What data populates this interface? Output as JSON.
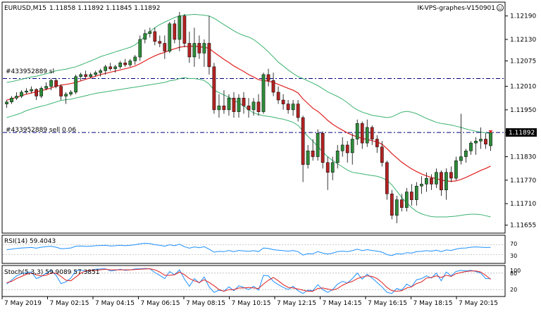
{
  "header": {
    "symbol": "EURUSD,M15",
    "ohlc": "1.11858 1.11892 1.11845 1.11892",
    "server": "IK-VPS-graphes-V150901"
  },
  "orders": {
    "sl_label": "#433952889 sl",
    "sell_label": "#433952889 sell 0.06"
  },
  "price_axis": {
    "ticks": [
      "1.12190",
      "1.12130",
      "1.12075",
      "1.12010",
      "1.11950",
      "1.11892",
      "1.11830",
      "1.11770",
      "1.11710",
      "1.11655"
    ],
    "current": "1.11892"
  },
  "time_axis": [
    "7 May 2019",
    "7 May 02:15",
    "7 May 04:15",
    "7 May 06:15",
    "7 May 08:15",
    "7 May 10:15",
    "7 May 12:15",
    "7 May 14:15",
    "7 May 16:15",
    "7 May 18:15",
    "7 May 20:15"
  ],
  "rsi": {
    "label": "RSI(14) 59.4043",
    "ticks": [
      "70",
      "30"
    ]
  },
  "stoch": {
    "label": "Stoch(5,3,3) 59.9089 57.3851",
    "ticks": [
      "100",
      "80",
      "20"
    ]
  },
  "colors": {
    "bull": "#2e8b3a",
    "bear": "#b22222",
    "band": "#3cb371",
    "ma": "#e02020",
    "rsi": "#1e90ff",
    "stoch_main": "#1e90ff",
    "stoch_signal": "#e02020",
    "level": "#000080"
  },
  "chart_data": {
    "type": "candlestick",
    "title": "EURUSD,M15",
    "ylim": [
      1.1164,
      1.1222
    ],
    "sl_level": 1.1203,
    "sell_level": 1.11892,
    "candles": [
      [
        1.11965,
        1.11975,
        1.11955,
        1.1197
      ],
      [
        1.1197,
        1.11985,
        1.11965,
        1.1198
      ],
      [
        1.1198,
        1.11995,
        1.11975,
        1.11985
      ],
      [
        1.11985,
        1.12,
        1.1198,
        1.11995
      ],
      [
        1.11995,
        1.12005,
        1.1199,
        1.11998
      ],
      [
        1.11998,
        1.1201,
        1.11992,
        1.12002
      ],
      [
        1.12002,
        1.12005,
        1.11975,
        1.11985
      ],
      [
        1.11985,
        1.1201,
        1.1198,
        1.12005
      ],
      [
        1.12005,
        1.1202,
        1.12,
        1.1201
      ],
      [
        1.1201,
        1.1203,
        1.12,
        1.12025
      ],
      [
        1.12025,
        1.1203,
        1.12005,
        1.1201
      ],
      [
        1.1201,
        1.12015,
        1.11975,
        1.11985
      ],
      [
        1.11985,
        1.11995,
        1.11965,
        1.1199
      ],
      [
        1.1199,
        1.12,
        1.11985,
        1.11995
      ],
      [
        1.11995,
        1.1204,
        1.1199,
        1.12035
      ],
      [
        1.12035,
        1.12045,
        1.12025,
        1.1204
      ],
      [
        1.1204,
        1.1205,
        1.1203,
        1.12035
      ],
      [
        1.12035,
        1.12045,
        1.1203,
        1.1204
      ],
      [
        1.1204,
        1.1205,
        1.12035,
        1.12045
      ],
      [
        1.12045,
        1.12055,
        1.12035,
        1.1205
      ],
      [
        1.1205,
        1.12065,
        1.1204,
        1.1206
      ],
      [
        1.1206,
        1.1207,
        1.1205,
        1.12055
      ],
      [
        1.12055,
        1.12065,
        1.12045,
        1.1206
      ],
      [
        1.1206,
        1.12075,
        1.12055,
        1.1207
      ],
      [
        1.1207,
        1.1208,
        1.1206,
        1.12065
      ],
      [
        1.12065,
        1.1208,
        1.1206,
        1.12075
      ],
      [
        1.12075,
        1.1209,
        1.12065,
        1.12085
      ],
      [
        1.12085,
        1.1214,
        1.12075,
        1.1213
      ],
      [
        1.1213,
        1.12155,
        1.1212,
        1.12145
      ],
      [
        1.12145,
        1.1216,
        1.12135,
        1.1215
      ],
      [
        1.1215,
        1.1216,
        1.12115,
        1.12125
      ],
      [
        1.12125,
        1.1214,
        1.1211,
        1.1212
      ],
      [
        1.1212,
        1.1214,
        1.1208,
        1.121
      ],
      [
        1.121,
        1.12175,
        1.12095,
        1.1217
      ],
      [
        1.1217,
        1.1218,
        1.1212,
        1.1213
      ],
      [
        1.1213,
        1.122,
        1.121,
        1.1219
      ],
      [
        1.1219,
        1.12195,
        1.1211,
        1.1212
      ],
      [
        1.1212,
        1.1215,
        1.1207,
        1.12085
      ],
      [
        1.12085,
        1.1216,
        1.1206,
        1.1212
      ],
      [
        1.1212,
        1.1214,
        1.1208,
        1.12095
      ],
      [
        1.12095,
        1.1213,
        1.1206,
        1.1212
      ],
      [
        1.1212,
        1.1219,
        1.1204,
        1.1206
      ],
      [
        1.1206,
        1.1207,
        1.1194,
        1.1195
      ],
      [
        1.1195,
        1.1199,
        1.1193,
        1.1196
      ],
      [
        1.1196,
        1.12,
        1.1194,
        1.1195
      ],
      [
        1.1195,
        1.1199,
        1.11935,
        1.1198
      ],
      [
        1.1198,
        1.11995,
        1.1193,
        1.11945
      ],
      [
        1.11945,
        1.1199,
        1.1193,
        1.1198
      ],
      [
        1.1198,
        1.11995,
        1.1194,
        1.1196
      ],
      [
        1.1196,
        1.1198,
        1.1193,
        1.1195
      ],
      [
        1.1195,
        1.1198,
        1.11935,
        1.1197
      ],
      [
        1.1197,
        1.1199,
        1.11935,
        1.11945
      ],
      [
        1.11945,
        1.12045,
        1.1194,
        1.1204
      ],
      [
        1.1204,
        1.12055,
        1.1201,
        1.12025
      ],
      [
        1.12025,
        1.12045,
        1.11985,
        1.11995
      ],
      [
        1.11995,
        1.1201,
        1.11965,
        1.11975
      ],
      [
        1.11975,
        1.1199,
        1.1195,
        1.11965
      ],
      [
        1.11965,
        1.11975,
        1.1194,
        1.1195
      ],
      [
        1.1195,
        1.11975,
        1.11935,
        1.11965
      ],
      [
        1.11965,
        1.11975,
        1.1192,
        1.1193
      ],
      [
        1.1193,
        1.11935,
        1.11765,
        1.1181
      ],
      [
        1.1181,
        1.1186,
        1.118,
        1.11845
      ],
      [
        1.11845,
        1.11875,
        1.1182,
        1.1183
      ],
      [
        1.1183,
        1.119,
        1.1182,
        1.1189
      ],
      [
        1.1189,
        1.11895,
        1.118,
        1.11815
      ],
      [
        1.11815,
        1.1183,
        1.11745,
        1.1179
      ],
      [
        1.1179,
        1.1183,
        1.1177,
        1.11815
      ],
      [
        1.11815,
        1.1186,
        1.118,
        1.11845
      ],
      [
        1.11845,
        1.1188,
        1.1183,
        1.1186
      ],
      [
        1.1186,
        1.1187,
        1.11815,
        1.1184
      ],
      [
        1.1184,
        1.1189,
        1.1181,
        1.11875
      ],
      [
        1.11875,
        1.11925,
        1.1186,
        1.11915
      ],
      [
        1.11915,
        1.1192,
        1.1185,
        1.11865
      ],
      [
        1.11865,
        1.11925,
        1.11855,
        1.11905
      ],
      [
        1.11905,
        1.1191,
        1.1186,
        1.11875
      ],
      [
        1.11875,
        1.11885,
        1.1184,
        1.11855
      ],
      [
        1.11855,
        1.1187,
        1.11805,
        1.11815
      ],
      [
        1.11815,
        1.1182,
        1.1172,
        1.11735
      ],
      [
        1.11735,
        1.11745,
        1.1167,
        1.1168
      ],
      [
        1.1168,
        1.1173,
        1.1166,
        1.1172
      ],
      [
        1.1172,
        1.11735,
        1.1169,
        1.117
      ],
      [
        1.117,
        1.1175,
        1.1169,
        1.1174
      ],
      [
        1.1174,
        1.1176,
        1.11705,
        1.1172
      ],
      [
        1.1172,
        1.11765,
        1.11705,
        1.11755
      ],
      [
        1.11755,
        1.1178,
        1.11735,
        1.1176
      ],
      [
        1.1176,
        1.1179,
        1.1174,
        1.11775
      ],
      [
        1.11775,
        1.11785,
        1.11745,
        1.1176
      ],
      [
        1.1176,
        1.118,
        1.1175,
        1.1179
      ],
      [
        1.1179,
        1.11795,
        1.1173,
        1.11745
      ],
      [
        1.11745,
        1.118,
        1.1172,
        1.1179
      ],
      [
        1.1179,
        1.11805,
        1.11765,
        1.11775
      ],
      [
        1.11775,
        1.1183,
        1.1177,
        1.1182
      ],
      [
        1.1182,
        1.1194,
        1.1181,
        1.1183
      ],
      [
        1.1183,
        1.1185,
        1.11815,
        1.11845
      ],
      [
        1.11845,
        1.1187,
        1.11835,
        1.11865
      ],
      [
        1.11865,
        1.1188,
        1.11835,
        1.1187
      ],
      [
        1.1187,
        1.11905,
        1.1185,
        1.11875
      ],
      [
        1.11875,
        1.1189,
        1.1185,
        1.11862
      ],
      [
        1.11858,
        1.11892,
        1.11845,
        1.11892
      ]
    ],
    "ma": [
      1.11975,
      1.11978,
      1.11982,
      1.11986,
      1.1199,
      1.11993,
      1.11996,
      1.11999,
      1.12002,
      1.12006,
      1.1201,
      1.12013,
      1.12015,
      1.12017,
      1.1202,
      1.12024,
      1.12028,
      1.12032,
      1.12036,
      1.1204,
      1.12043,
      1.12046,
      1.12049,
      1.12052,
      1.12055,
      1.12058,
      1.12062,
      1.12068,
      1.12075,
      1.12082,
      1.12088,
      1.12093,
      1.12097,
      1.12102,
      1.12106,
      1.1211,
      1.12112,
      1.12112,
      1.12113,
      1.12111,
      1.1211,
      1.12107,
      1.12097,
      1.12088,
      1.12079,
      1.12071,
      1.12062,
      1.12055,
      1.12048,
      1.1204,
      1.12034,
      1.12027,
      1.12025,
      1.12023,
      1.1202,
      1.12015,
      1.1201,
      1.12005,
      1.12,
      1.11993,
      1.11978,
      1.11966,
      1.11954,
      1.11946,
      1.11935,
      1.11923,
      1.11913,
      1.11905,
      1.11898,
      1.11891,
      1.11885,
      1.11881,
      1.11877,
      1.11874,
      1.11871,
      1.11868,
      1.11862,
      1.11851,
      1.11838,
      1.11827,
      1.11816,
      1.11807,
      1.11799,
      1.11792,
      1.11786,
      1.11781,
      1.11777,
      1.11774,
      1.1177,
      1.11768,
      1.11767,
      1.11768,
      1.11772,
      1.11777,
      1.11783,
      1.11789,
      1.11795,
      1.118,
      1.11806
    ],
    "bb_upper": [
      1.1202,
      1.12022,
      1.12025,
      1.12028,
      1.12031,
      1.12034,
      1.12036,
      1.12039,
      1.12042,
      1.12046,
      1.1205,
      1.12052,
      1.12054,
      1.12057,
      1.1206,
      1.12065,
      1.1207,
      1.12075,
      1.1208,
      1.12086,
      1.1209,
      1.12094,
      1.12098,
      1.12102,
      1.12106,
      1.1211,
      1.12116,
      1.12126,
      1.12138,
      1.1215,
      1.1216,
      1.12168,
      1.12174,
      1.1218,
      1.12186,
      1.1219,
      1.12192,
      1.12193,
      1.12194,
      1.12193,
      1.12192,
      1.1219,
      1.12184,
      1.12176,
      1.12168,
      1.1216,
      1.12152,
      1.12145,
      1.1214,
      1.12136,
      1.1213,
      1.1212,
      1.1211,
      1.12098,
      1.12085,
      1.12072,
      1.12062,
      1.12052,
      1.12043,
      1.12035,
      1.1203,
      1.12024,
      1.12018,
      1.12012,
      1.12004,
      1.11996,
      1.1199,
      1.11984,
      1.11977,
      1.11968,
      1.11958,
      1.1195,
      1.11944,
      1.1194,
      1.11936,
      1.11934,
      1.11932,
      1.1193,
      1.11932,
      1.11938,
      1.11944,
      1.11946,
      1.11944,
      1.1194,
      1.11934,
      1.11928,
      1.11923,
      1.11918,
      1.11915,
      1.11913,
      1.11911,
      1.11908,
      1.11905,
      1.11901,
      1.11898,
      1.11895,
      1.11893,
      1.11891,
      1.1189
    ],
    "bb_lower": [
      1.1193,
      1.11934,
      1.11938,
      1.11942,
      1.11948,
      1.11952,
      1.11956,
      1.11959,
      1.11962,
      1.11966,
      1.1197,
      1.11974,
      1.11976,
      1.11977,
      1.1198,
      1.11983,
      1.11986,
      1.11989,
      1.11992,
      1.11994,
      1.11996,
      1.11998,
      1.12,
      1.12002,
      1.12004,
      1.12006,
      1.12008,
      1.1201,
      1.12012,
      1.12014,
      1.12016,
      1.12018,
      1.1202,
      1.12024,
      1.12026,
      1.1203,
      1.12032,
      1.1203,
      1.1203,
      1.12028,
      1.12025,
      1.12016,
      1.12,
      1.11994,
      1.11988,
      1.11982,
      1.11974,
      1.11968,
      1.1196,
      1.1195,
      1.11942,
      1.11938,
      1.11935,
      1.11933,
      1.11931,
      1.11928,
      1.11926,
      1.11922,
      1.11918,
      1.1191,
      1.11896,
      1.11882,
      1.1187,
      1.11856,
      1.11842,
      1.1183,
      1.1182,
      1.11812,
      1.11804,
      1.11796,
      1.1179,
      1.11788,
      1.11786,
      1.11784,
      1.11782,
      1.1178,
      1.11776,
      1.1177,
      1.11758,
      1.11742,
      1.11726,
      1.11712,
      1.117,
      1.1169,
      1.11684,
      1.1168,
      1.11677,
      1.11676,
      1.11676,
      1.11676,
      1.11677,
      1.11678,
      1.1168,
      1.11682,
      1.11683,
      1.11683,
      1.11682,
      1.11679,
      1.11676
    ],
    "rsi": [
      50,
      52,
      55,
      57,
      58,
      59,
      56,
      60,
      62,
      64,
      60,
      54,
      55,
      57,
      64,
      65,
      63,
      64,
      66,
      67,
      68,
      65,
      66,
      68,
      66,
      68,
      70,
      74,
      76,
      75,
      70,
      68,
      64,
      70,
      66,
      72,
      62,
      56,
      61,
      58,
      62,
      52,
      40,
      43,
      42,
      47,
      42,
      47,
      45,
      43,
      46,
      42,
      57,
      55,
      50,
      48,
      46,
      44,
      47,
      42,
      28,
      34,
      33,
      42,
      36,
      32,
      36,
      42,
      44,
      42,
      46,
      52,
      46,
      50,
      47,
      44,
      40,
      30,
      26,
      34,
      32,
      38,
      36,
      42,
      43,
      46,
      44,
      48,
      42,
      49,
      47,
      52,
      56,
      57,
      60,
      61,
      60,
      59,
      59.4
    ],
    "stoch_main": [
      40,
      55,
      70,
      78,
      82,
      84,
      60,
      68,
      80,
      90,
      72,
      42,
      48,
      62,
      88,
      92,
      86,
      90,
      94,
      95,
      96,
      88,
      90,
      94,
      90,
      92,
      95,
      96,
      97,
      96,
      82,
      72,
      60,
      86,
      74,
      92,
      58,
      32,
      60,
      44,
      66,
      30,
      10,
      18,
      14,
      30,
      16,
      34,
      28,
      20,
      32,
      18,
      72,
      70,
      50,
      38,
      28,
      20,
      32,
      16,
      6,
      18,
      16,
      38,
      20,
      10,
      20,
      40,
      50,
      44,
      60,
      80,
      58,
      76,
      62,
      46,
      30,
      10,
      6,
      24,
      18,
      40,
      30,
      56,
      60,
      70,
      62,
      80,
      52,
      84,
      70,
      86,
      90,
      88,
      90,
      86,
      80,
      60,
      59.9
    ],
    "stoch_signal": [
      45,
      50,
      60,
      68,
      76,
      80,
      74,
      70,
      72,
      80,
      80,
      68,
      54,
      52,
      66,
      80,
      88,
      90,
      90,
      92,
      94,
      92,
      92,
      92,
      92,
      92,
      93,
      94,
      95,
      96,
      92,
      84,
      72,
      72,
      74,
      84,
      74,
      60,
      52,
      46,
      56,
      46,
      34,
      20,
      14,
      20,
      20,
      26,
      26,
      28,
      26,
      24,
      40,
      54,
      64,
      52,
      38,
      28,
      26,
      22,
      18,
      14,
      14,
      24,
      26,
      22,
      18,
      24,
      36,
      44,
      50,
      60,
      66,
      70,
      68,
      60,
      46,
      28,
      16,
      14,
      16,
      26,
      30,
      42,
      48,
      62,
      64,
      70,
      64,
      72,
      68,
      78,
      82,
      86,
      88,
      88,
      84,
      72,
      57.4
    ]
  }
}
